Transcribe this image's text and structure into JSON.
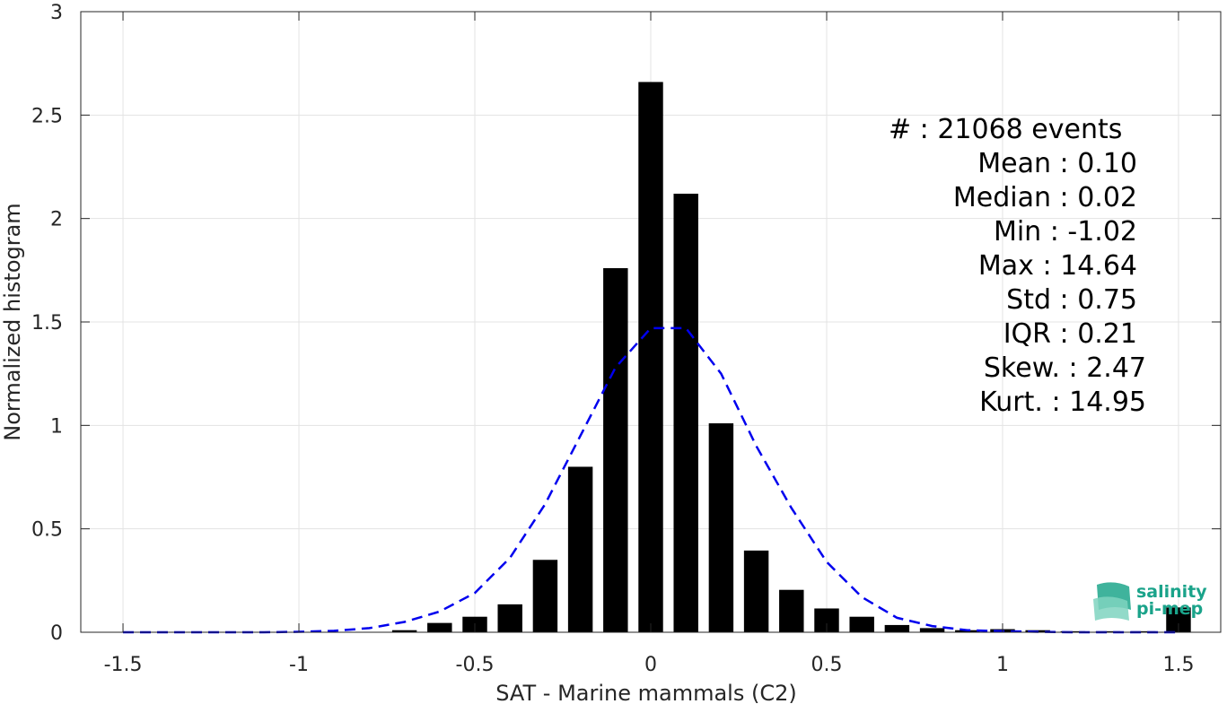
{
  "chart_data": {
    "type": "bar",
    "xlabel": "SAT - Marine mammals (C2)",
    "ylabel": "Normalized histogram",
    "xlim": [
      -1.62,
      1.62
    ],
    "ylim": [
      0,
      3
    ],
    "xticks": [
      "-1.5",
      "-1",
      "-0.5",
      "0",
      "0.5",
      "1",
      "1.5"
    ],
    "yticks": [
      "0",
      "0.5",
      "1",
      "1.5",
      "2",
      "2.5",
      "3"
    ],
    "grid": true,
    "bar_color": "#000000",
    "curve_color": "#0000ee",
    "bars": {
      "x": [
        -0.7,
        -0.6,
        -0.5,
        -0.4,
        -0.3,
        -0.2,
        -0.1,
        0.0,
        0.1,
        0.2,
        0.3,
        0.4,
        0.5,
        0.6,
        0.7,
        0.8,
        0.9,
        1.0,
        1.1,
        1.2,
        1.3,
        1.4,
        1.5
      ],
      "values": [
        0.01,
        0.045,
        0.075,
        0.135,
        0.35,
        0.8,
        1.76,
        2.66,
        2.12,
        1.01,
        0.395,
        0.205,
        0.115,
        0.075,
        0.035,
        0.02,
        0.01,
        0.015,
        0.01,
        0.005,
        0.005,
        0.005,
        0.12
      ],
      "width": 0.07
    },
    "fit_curve": {
      "style": "dashed",
      "x": [
        -1.5,
        -1.4,
        -1.3,
        -1.2,
        -1.1,
        -1.0,
        -0.9,
        -0.8,
        -0.7,
        -0.6,
        -0.5,
        -0.4,
        -0.3,
        -0.2,
        -0.1,
        0.0,
        0.1,
        0.2,
        0.3,
        0.4,
        0.5,
        0.6,
        0.7,
        0.8,
        0.9,
        1.0,
        1.1,
        1.2,
        1.3,
        1.4,
        1.5
      ],
      "y": [
        0.0,
        0.0,
        0.0,
        0.0,
        0.0,
        0.002,
        0.007,
        0.02,
        0.05,
        0.1,
        0.19,
        0.36,
        0.62,
        0.95,
        1.28,
        1.47,
        1.47,
        1.25,
        0.9,
        0.6,
        0.34,
        0.17,
        0.07,
        0.03,
        0.01,
        0.005,
        0.002,
        0.0,
        0.0,
        0.0,
        0.0
      ]
    },
    "annotations": [
      "#  : 21068 events",
      "Mean : 0.10",
      "Median : 0.02",
      "Min : -1.02",
      "Max : 14.64",
      "Std : 0.75",
      "IQR : 0.21",
      "Skew. : 2.47",
      "Kurt. : 14.95"
    ]
  },
  "logo": {
    "line1": "salinity",
    "line2": "pi-mep"
  }
}
